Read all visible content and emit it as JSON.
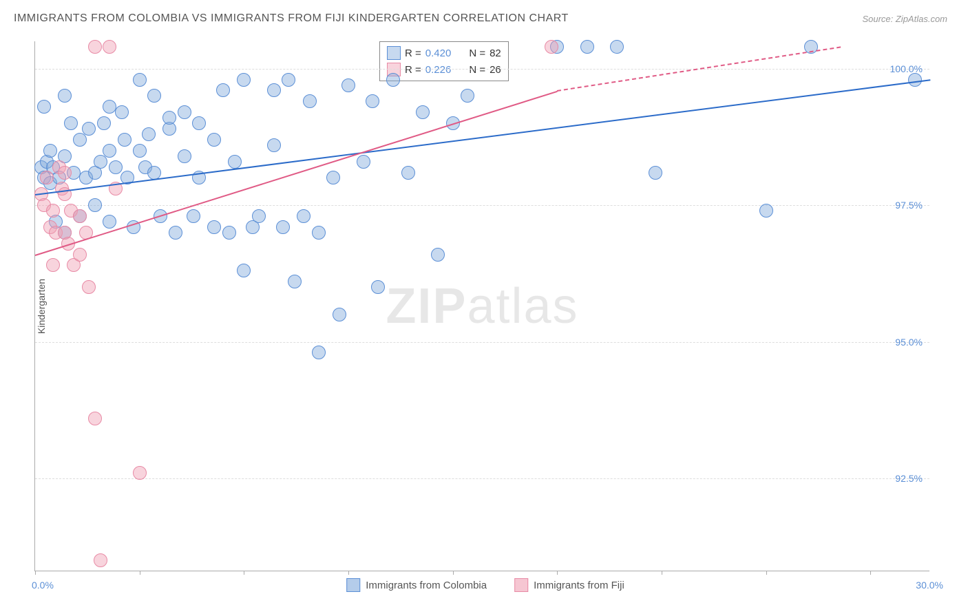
{
  "title": "IMMIGRANTS FROM COLOMBIA VS IMMIGRANTS FROM FIJI KINDERGARTEN CORRELATION CHART",
  "source": "Source: ZipAtlas.com",
  "watermark_part1": "ZIP",
  "watermark_part2": "atlas",
  "y_axis_title": "Kindergarten",
  "chart": {
    "type": "scatter",
    "xlim": [
      0,
      30
    ],
    "ylim": [
      90.8,
      100.5
    ],
    "x_min_label": "0.0%",
    "x_max_label": "30.0%",
    "y_ticks": [
      92.5,
      95.0,
      97.5,
      100.0
    ],
    "y_tick_labels": [
      "92.5%",
      "95.0%",
      "97.5%",
      "100.0%"
    ],
    "x_tick_positions": [
      0,
      3.5,
      7,
      10.5,
      14,
      17.5,
      21,
      24.5,
      28
    ],
    "grid_color": "#dddddd",
    "axis_color": "#aaaaaa",
    "background_color": "#ffffff",
    "marker_radius": 10,
    "marker_opacity": 0.5,
    "series": [
      {
        "name": "Immigrants from Colombia",
        "color": "#6d9fe0",
        "fill": "rgba(130,170,220,0.45)",
        "stroke": "#5b8fd6",
        "r_label": "R =",
        "r_value": "0.420",
        "n_label": "N =",
        "n_value": "82",
        "trend": {
          "x1": 0,
          "y1": 97.7,
          "x2": 30,
          "y2": 99.8,
          "color": "#2b6bc9",
          "dash_after_x": 30
        },
        "points": [
          [
            0.2,
            98.2
          ],
          [
            0.3,
            98.0
          ],
          [
            0.4,
            98.3
          ],
          [
            0.5,
            97.9
          ],
          [
            0.5,
            98.5
          ],
          [
            0.6,
            98.2
          ],
          [
            0.7,
            97.2
          ],
          [
            0.8,
            98.0
          ],
          [
            1.0,
            98.4
          ],
          [
            1.0,
            97.0
          ],
          [
            1.2,
            99.0
          ],
          [
            1.3,
            98.1
          ],
          [
            1.5,
            97.3
          ],
          [
            1.5,
            98.7
          ],
          [
            1.7,
            98.0
          ],
          [
            1.8,
            98.9
          ],
          [
            2.0,
            98.1
          ],
          [
            2.0,
            97.5
          ],
          [
            2.2,
            98.3
          ],
          [
            2.3,
            99.0
          ],
          [
            2.5,
            98.5
          ],
          [
            2.5,
            97.2
          ],
          [
            2.7,
            98.2
          ],
          [
            2.9,
            99.2
          ],
          [
            3.0,
            98.7
          ],
          [
            3.1,
            98.0
          ],
          [
            3.3,
            97.1
          ],
          [
            3.5,
            98.5
          ],
          [
            3.5,
            99.8
          ],
          [
            3.7,
            98.2
          ],
          [
            3.8,
            98.8
          ],
          [
            4.0,
            99.5
          ],
          [
            4.0,
            98.1
          ],
          [
            4.2,
            97.3
          ],
          [
            4.5,
            98.9
          ],
          [
            4.5,
            99.1
          ],
          [
            4.7,
            97.0
          ],
          [
            5.0,
            98.4
          ],
          [
            5.0,
            99.2
          ],
          [
            5.3,
            97.3
          ],
          [
            5.5,
            98.0
          ],
          [
            5.5,
            99.0
          ],
          [
            6.0,
            98.7
          ],
          [
            6.0,
            97.1
          ],
          [
            6.3,
            99.6
          ],
          [
            6.5,
            97.0
          ],
          [
            6.7,
            98.3
          ],
          [
            7.0,
            99.8
          ],
          [
            7.0,
            96.3
          ],
          [
            7.3,
            97.1
          ],
          [
            7.5,
            97.3
          ],
          [
            8.0,
            99.6
          ],
          [
            8.0,
            98.6
          ],
          [
            8.3,
            97.1
          ],
          [
            8.5,
            99.8
          ],
          [
            8.7,
            96.1
          ],
          [
            9.0,
            97.3
          ],
          [
            9.2,
            99.4
          ],
          [
            9.5,
            97.0
          ],
          [
            9.5,
            94.8
          ],
          [
            10.0,
            98.0
          ],
          [
            10.2,
            95.5
          ],
          [
            10.5,
            99.7
          ],
          [
            11.0,
            98.3
          ],
          [
            11.3,
            99.4
          ],
          [
            11.5,
            96.0
          ],
          [
            12.0,
            99.8
          ],
          [
            12.5,
            98.1
          ],
          [
            13.0,
            99.2
          ],
          [
            13.5,
            96.6
          ],
          [
            14.0,
            99.0
          ],
          [
            14.5,
            99.5
          ],
          [
            17.5,
            100.4
          ],
          [
            18.5,
            100.4
          ],
          [
            19.5,
            100.4
          ],
          [
            20.8,
            98.1
          ],
          [
            24.5,
            97.4
          ],
          [
            26.0,
            100.4
          ],
          [
            29.5,
            99.8
          ],
          [
            0.3,
            99.3
          ],
          [
            1.0,
            99.5
          ],
          [
            2.5,
            99.3
          ]
        ]
      },
      {
        "name": "Immigrants from Fiji",
        "color": "#f0a8bb",
        "fill": "rgba(240,160,180,0.45)",
        "stroke": "#e88aa5",
        "r_label": "R =",
        "r_value": "0.226",
        "n_label": "N =",
        "n_value": "26",
        "trend": {
          "x1": 0,
          "y1": 96.6,
          "x2": 17.5,
          "y2": 99.6,
          "color": "#e05a85",
          "dash_after_x": 17.5,
          "dash_x2": 27,
          "dash_y2": 100.4
        },
        "points": [
          [
            0.2,
            97.7
          ],
          [
            0.3,
            97.5
          ],
          [
            0.4,
            98.0
          ],
          [
            0.5,
            97.1
          ],
          [
            0.6,
            97.4
          ],
          [
            0.7,
            97.0
          ],
          [
            0.8,
            98.2
          ],
          [
            0.9,
            97.8
          ],
          [
            1.0,
            97.7
          ],
          [
            1.0,
            97.0
          ],
          [
            1.1,
            96.8
          ],
          [
            1.2,
            97.4
          ],
          [
            1.3,
            96.4
          ],
          [
            1.5,
            97.3
          ],
          [
            1.5,
            96.6
          ],
          [
            1.7,
            97.0
          ],
          [
            1.8,
            96.0
          ],
          [
            2.0,
            100.4
          ],
          [
            2.0,
            93.6
          ],
          [
            2.2,
            91.0
          ],
          [
            2.5,
            100.4
          ],
          [
            2.7,
            97.8
          ],
          [
            3.5,
            92.6
          ],
          [
            17.3,
            100.4
          ],
          [
            1.0,
            98.1
          ],
          [
            0.6,
            96.4
          ]
        ]
      }
    ],
    "legend_bottom": [
      {
        "label": "Immigrants from Colombia",
        "fill": "rgba(130,170,220,0.6)",
        "stroke": "#5b8fd6"
      },
      {
        "label": "Immigrants from Fiji",
        "fill": "rgba(240,160,180,0.6)",
        "stroke": "#e88aa5"
      }
    ]
  }
}
